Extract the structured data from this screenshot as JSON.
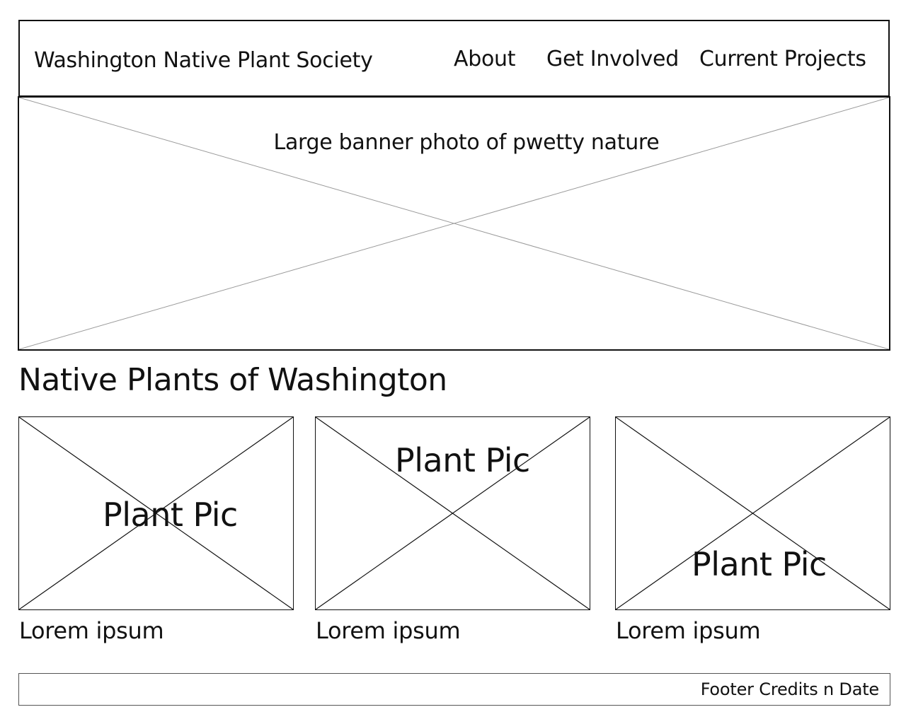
{
  "header": {
    "site_title": "Washington Native Plant Society",
    "nav": [
      {
        "label": "About"
      },
      {
        "label": "Get Involved"
      },
      {
        "label": "Current Projects"
      }
    ]
  },
  "banner": {
    "caption": "Large banner photo of pwetty nature"
  },
  "main": {
    "heading": "Native Plants of Washington",
    "cards": [
      {
        "image_label": "Plant Pic",
        "caption": "Lorem ipsum"
      },
      {
        "image_label": "Plant Pic",
        "caption": "Lorem ipsum"
      },
      {
        "image_label": "Plant Pic",
        "caption": "Lorem ipsum"
      }
    ]
  },
  "footer": {
    "text": "Footer Credits n Date"
  },
  "colors": {
    "stroke": "#111111",
    "banner_cross": "#999999",
    "background": "#ffffff"
  }
}
